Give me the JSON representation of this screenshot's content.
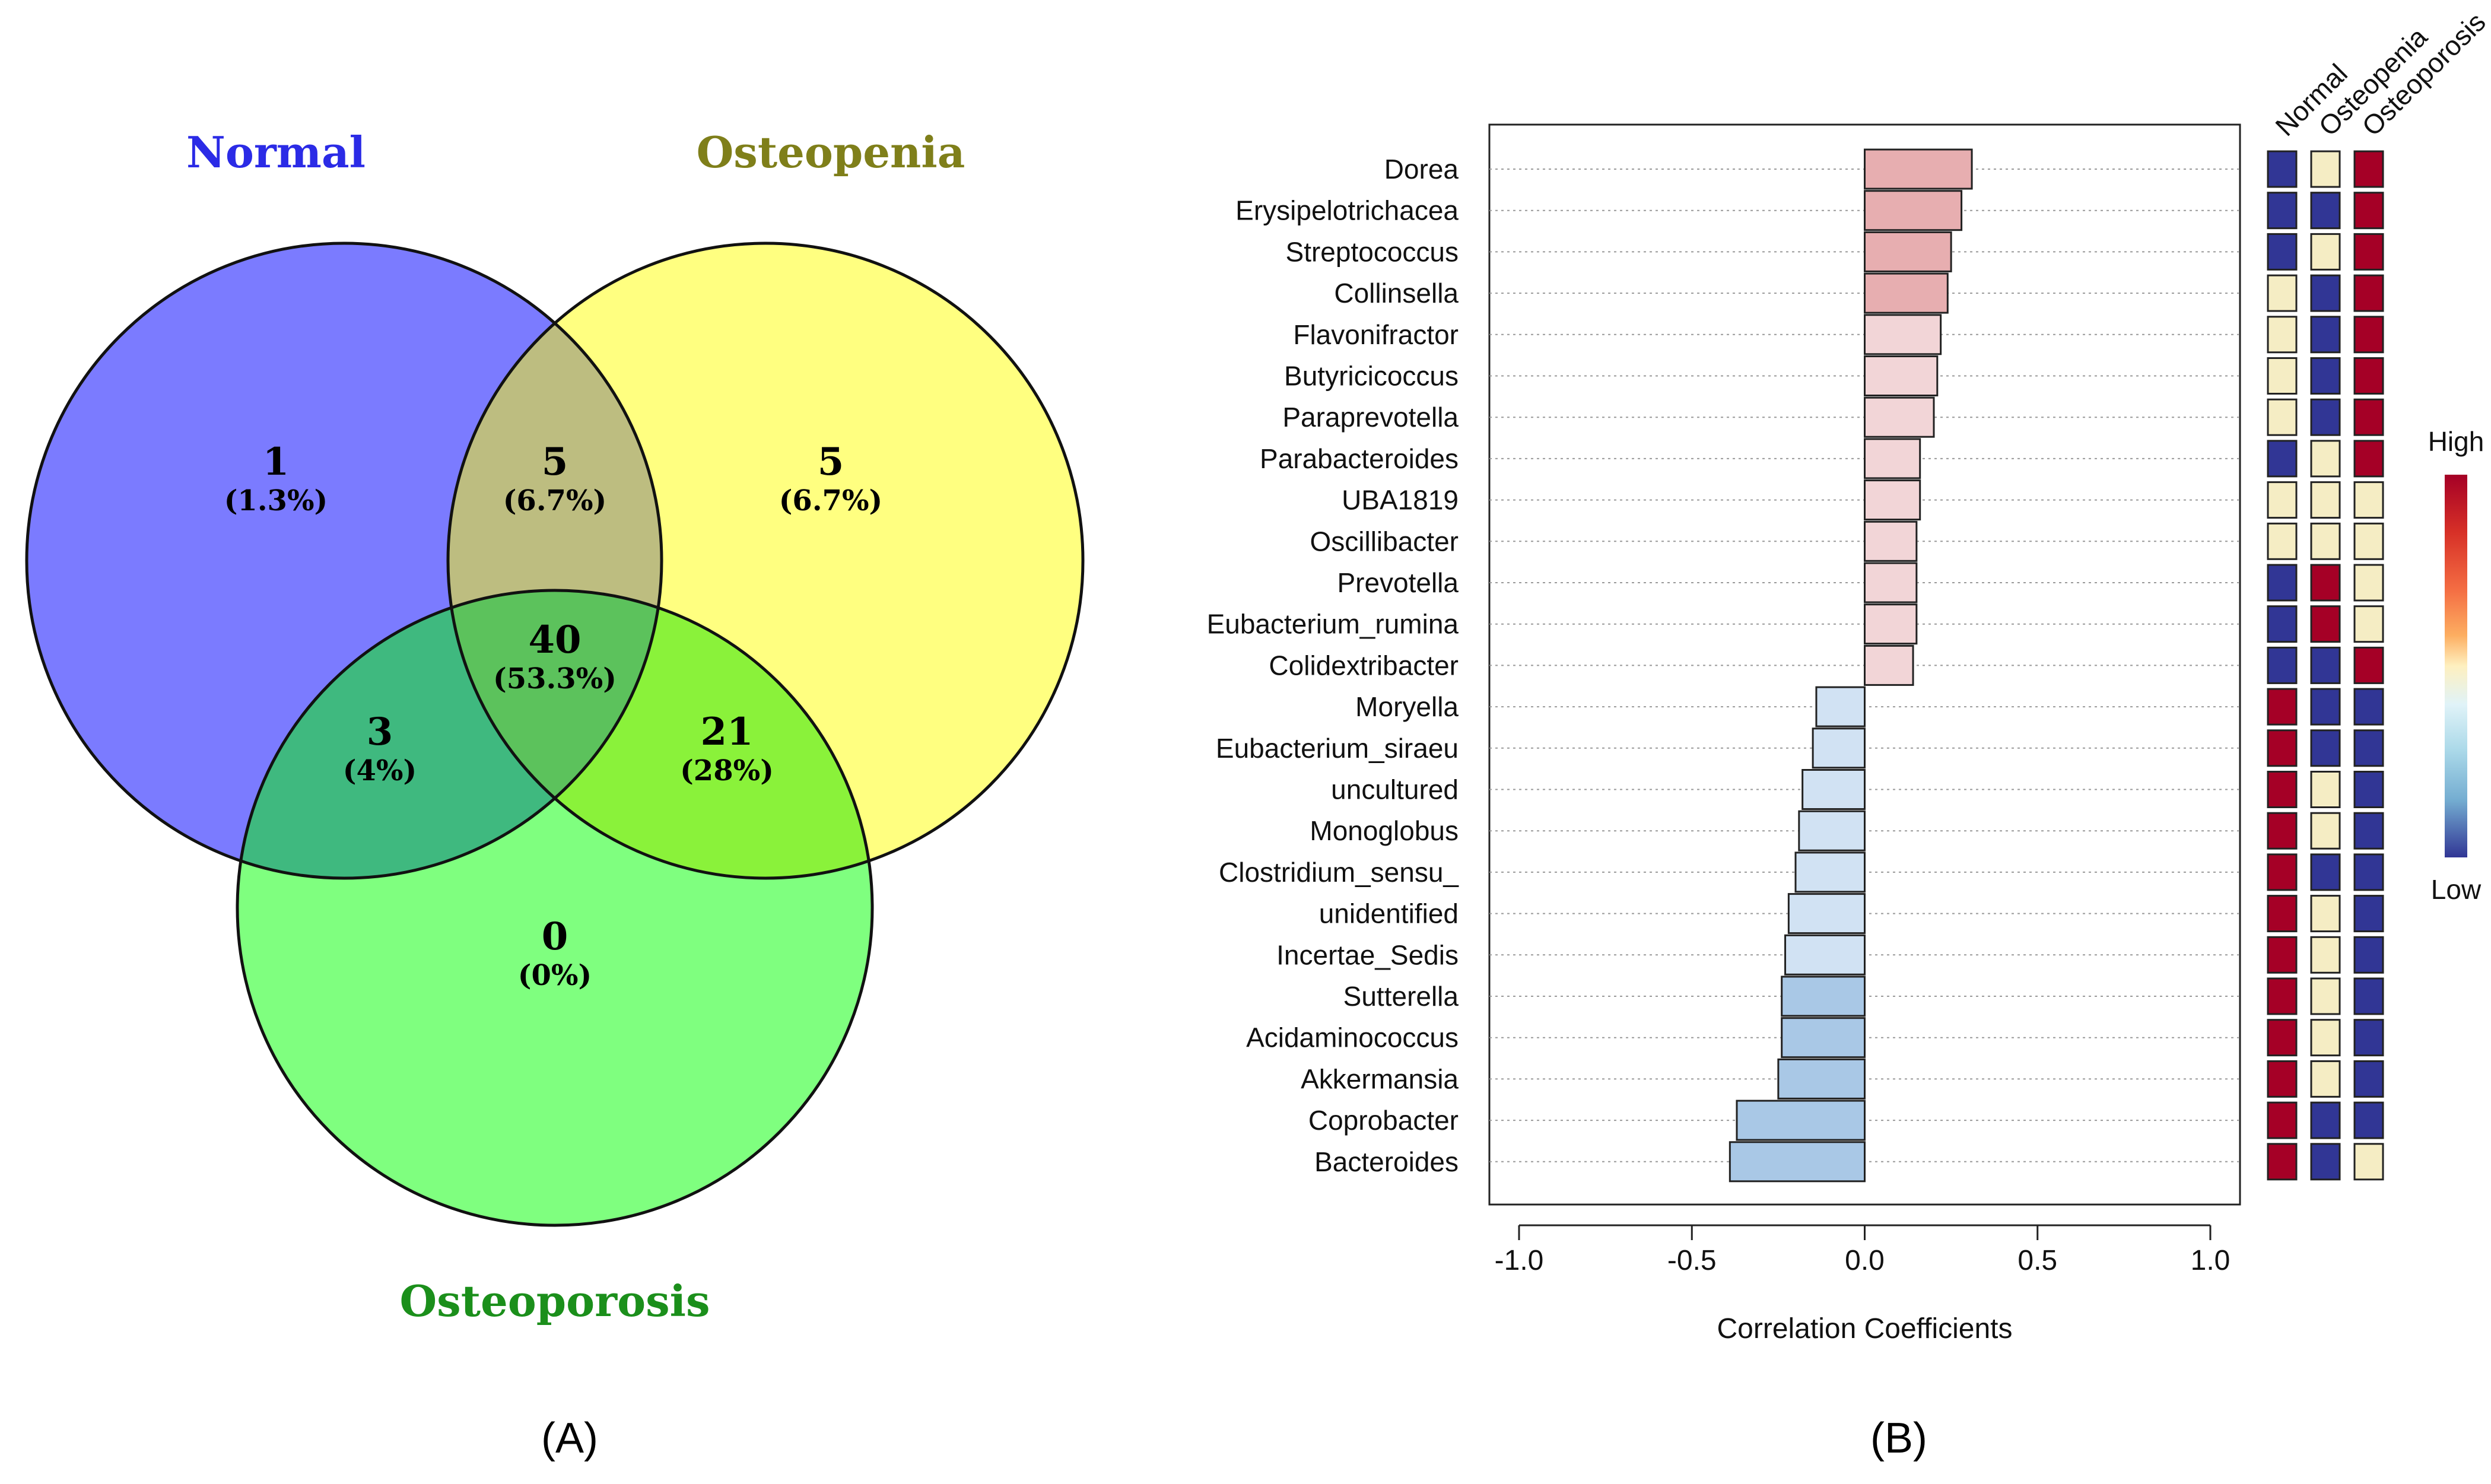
{
  "chart_data": [
    {
      "type": "venn",
      "panel_label": "(A)",
      "sets": [
        {
          "name": "Normal",
          "color": "#7B7BFF",
          "title_color": "#2B2BE6"
        },
        {
          "name": "Osteopenia",
          "color": "#FFFF80",
          "title_color": "#7F7F1A"
        },
        {
          "name": "Osteoporosis",
          "color": "#7FFF7F",
          "title_color": "#1B8F1B"
        }
      ],
      "regions": [
        {
          "id": "normal_only",
          "count": "1",
          "percent": "(1.3%)",
          "color": "#7B7BFF"
        },
        {
          "id": "normal_osteopenia",
          "count": "5",
          "percent": "(6.7%)",
          "color": "#BDBD80"
        },
        {
          "id": "osteopenia_only",
          "count": "5",
          "percent": "(6.7%)",
          "color": "#FFFF80"
        },
        {
          "id": "all_three",
          "count": "40",
          "percent": "(53.3%)",
          "color": "#5CC25C"
        },
        {
          "id": "normal_osteoporosis",
          "count": "3",
          "percent": "(4%)",
          "color": "#3FB97F"
        },
        {
          "id": "osteopenia_osteoporosis",
          "count": "21",
          "percent": "(28%)",
          "color": "#8AF23A"
        },
        {
          "id": "osteoporosis_only",
          "count": "0",
          "percent": "(0%)",
          "color": "#7FFF7F"
        }
      ]
    },
    {
      "type": "bar",
      "orientation": "horizontal",
      "panel_label": "(B)",
      "xlabel": "Correlation Coefficients",
      "xlim": [
        -1.0,
        1.0
      ],
      "xticks": [
        "-1.0",
        "-0.5",
        "0.0",
        "0.5",
        "1.0"
      ],
      "xtick_values": [
        -1.0,
        -0.5,
        0.0,
        0.5,
        1.0
      ],
      "colors": {
        "positive_strong": "#E7AEB0",
        "positive_light": "#F2D5D7",
        "negative_light": "#D1E2F3",
        "negative_strong": "#A9C8E6",
        "high": "#A50026",
        "mid": "#F5EDC4",
        "low": "#313695"
      },
      "categories": [
        "Dorea",
        "Erysipelotrichacea",
        "Streptococcus",
        "Collinsella",
        "Flavonifractor",
        "Butyricicoccus",
        "Paraprevotella",
        "Parabacteroides",
        "UBA1819",
        "Oscillibacter",
        "Prevotella",
        "Eubacterium_rumina",
        "Colidextribacter",
        "Moryella",
        "Eubacterium_siraeu",
        "uncultured",
        "Monoglobus",
        "Clostridium_sensu_",
        "unidentified",
        "Incertae_Sedis",
        "Sutterella",
        "Acidaminococcus",
        "Akkermansia",
        "Coprobacter",
        "Bacteroides"
      ],
      "values": [
        0.31,
        0.28,
        0.25,
        0.24,
        0.22,
        0.21,
        0.2,
        0.16,
        0.16,
        0.15,
        0.15,
        0.15,
        0.14,
        -0.14,
        -0.15,
        -0.18,
        -0.19,
        -0.2,
        -0.22,
        -0.23,
        -0.24,
        -0.24,
        -0.25,
        -0.37,
        -0.39
      ],
      "heatmap": {
        "columns": [
          "Normal",
          "Osteopenia",
          "Osteoporosis"
        ],
        "rows": [
          [
            "low",
            "mid",
            "high"
          ],
          [
            "low",
            "low",
            "high"
          ],
          [
            "low",
            "mid",
            "high"
          ],
          [
            "mid",
            "low",
            "high"
          ],
          [
            "mid",
            "low",
            "high"
          ],
          [
            "mid",
            "low",
            "high"
          ],
          [
            "mid",
            "low",
            "high"
          ],
          [
            "low",
            "mid",
            "high"
          ],
          [
            "mid",
            "mid",
            "mid"
          ],
          [
            "mid",
            "mid",
            "mid"
          ],
          [
            "low",
            "high",
            "mid"
          ],
          [
            "low",
            "high",
            "mid"
          ],
          [
            "low",
            "low",
            "high"
          ],
          [
            "high",
            "low",
            "low"
          ],
          [
            "high",
            "low",
            "low"
          ],
          [
            "high",
            "mid",
            "low"
          ],
          [
            "high",
            "mid",
            "low"
          ],
          [
            "high",
            "low",
            "low"
          ],
          [
            "high",
            "mid",
            "low"
          ],
          [
            "high",
            "mid",
            "low"
          ],
          [
            "high",
            "mid",
            "low"
          ],
          [
            "high",
            "mid",
            "low"
          ],
          [
            "high",
            "mid",
            "low"
          ],
          [
            "high",
            "low",
            "low"
          ],
          [
            "high",
            "low",
            "mid"
          ]
        ],
        "legend": {
          "high_label": "High",
          "low_label": "Low"
        }
      }
    }
  ]
}
